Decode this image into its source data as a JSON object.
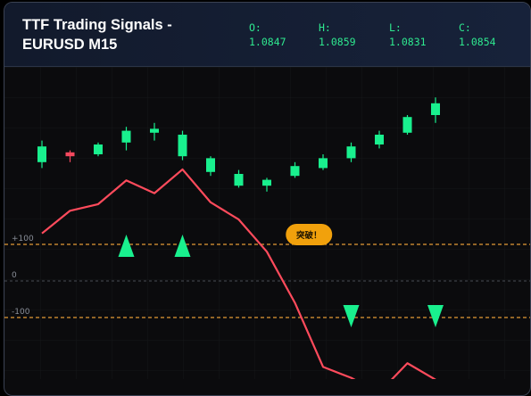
{
  "header": {
    "title": "TTF Trading Signals - EURUSD M15",
    "ohlc": [
      {
        "key": "open",
        "label": "O:",
        "value": "1.0847"
      },
      {
        "key": "high",
        "label": "H:",
        "value": "1.0859"
      },
      {
        "key": "low",
        "label": "L:",
        "value": "1.0831"
      },
      {
        "key": "close",
        "label": "C:",
        "value": "1.0854"
      }
    ]
  },
  "colors": {
    "bullish": "#19f08e",
    "bearish": "#f4485e",
    "ttf_line": "#ff4b5c",
    "threshold": "#e39a35",
    "badge": "#f1a10c",
    "buy_signal": "#19f08e",
    "sell_signal": "#19f08e"
  },
  "chart_data": {
    "type": "line",
    "candles": [
      {
        "o": 3,
        "c": 7,
        "h": 8.5,
        "l": 1.5
      },
      {
        "o": 5.5,
        "c": 4.5,
        "h": 6,
        "l": 3
      },
      {
        "o": 5,
        "c": 7.5,
        "h": 8,
        "l": 4.5
      },
      {
        "o": 8,
        "c": 11,
        "h": 12,
        "l": 6
      },
      {
        "o": 10.5,
        "c": 11.5,
        "h": 13,
        "l": 8.5
      },
      {
        "o": 4.5,
        "c": 10,
        "h": 11,
        "l": 3.5
      },
      {
        "o": 0.5,
        "c": 4,
        "h": 4.5,
        "l": -0.5
      },
      {
        "o": -3,
        "c": 0,
        "h": 1,
        "l": -3.5
      },
      {
        "o": -3,
        "c": -1.5,
        "h": -1,
        "l": -4.5
      },
      {
        "o": -0.5,
        "c": 2,
        "h": 3,
        "l": -1
      },
      {
        "o": 1.5,
        "c": 4,
        "h": 5,
        "l": 1
      },
      {
        "o": 4,
        "c": 7,
        "h": 8,
        "l": 3
      },
      {
        "o": 7.5,
        "c": 10,
        "h": 11,
        "l": 6.5
      },
      {
        "o": 10.5,
        "c": 14.5,
        "h": 15,
        "l": 10
      },
      {
        "o": 15,
        "c": 18,
        "h": 19.5,
        "l": 13
      }
    ],
    "ttf_values": [
      130,
      192,
      210,
      275,
      240,
      305,
      215,
      168,
      80,
      -60,
      -235,
      -265,
      -305,
      -225,
      -270
    ],
    "yticks": [
      {
        "label": "+100",
        "value": 100
      },
      {
        "label": "0",
        "value": 0
      },
      {
        "label": "-100",
        "value": -100
      }
    ],
    "thresholds": [
      100,
      -100
    ],
    "signals": [
      {
        "type": "buy",
        "index": 3
      },
      {
        "type": "buy",
        "index": 5
      },
      {
        "type": "sell",
        "index": 11
      },
      {
        "type": "sell",
        "index": 14
      }
    ],
    "annotations": [
      {
        "text": "突破！",
        "index": 9.5
      }
    ],
    "grid": true
  }
}
